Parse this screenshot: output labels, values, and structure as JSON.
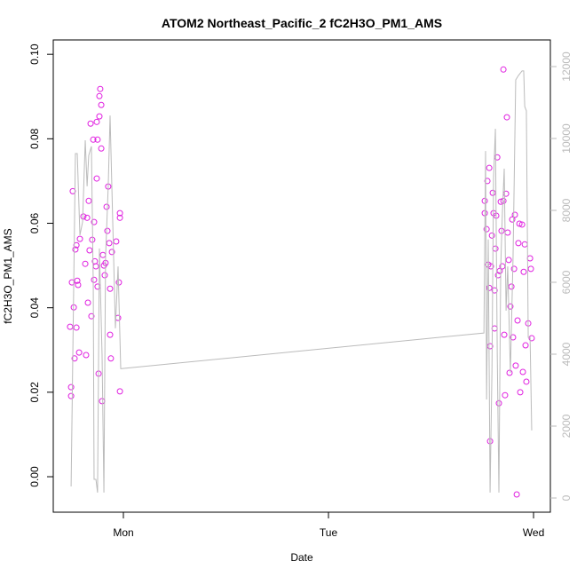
{
  "chart_data": {
    "type": "scatter",
    "title": "ATOM2 Northeast_Pacific_2 fC2H3O_PM1_AMS",
    "x_label": "Date",
    "y_label": "fC2H3O_PM1_AMS",
    "xlim": [
      0.658,
      3.082
    ],
    "xticks": [
      {
        "value": 1,
        "label": "Mon"
      },
      {
        "value": 2,
        "label": "Tue"
      },
      {
        "value": 3,
        "label": "Wed"
      }
    ],
    "ylim": [
      -0.0084,
      0.1034
    ],
    "yticks": [
      {
        "value": 0,
        "label": "0.00"
      },
      {
        "value": 0.02,
        "label": "0.02"
      },
      {
        "value": 0.04,
        "label": "0.04"
      },
      {
        "value": 0.06,
        "label": "0.06"
      },
      {
        "value": 0.08,
        "label": "0.08"
      },
      {
        "value": 0.1,
        "label": "0.10"
      }
    ],
    "y2lim": [
      -395,
      12741
    ],
    "y2ticks": [
      0,
      2000,
      4000,
      6000,
      8000,
      10000,
      12000
    ],
    "series": [
      {
        "type": "scatter",
        "color": "#e020e0",
        "x": [
          0.74,
          0.745,
          0.745,
          0.749,
          0.753,
          0.758,
          0.762,
          0.766,
          0.771,
          0.771,
          0.775,
          0.779,
          0.784,
          0.788,
          0.805,
          0.814,
          0.818,
          0.823,
          0.827,
          0.831,
          0.835,
          0.84,
          0.844,
          0.848,
          0.853,
          0.857,
          0.857,
          0.861,
          0.866,
          0.87,
          0.87,
          0.874,
          0.874,
          0.879,
          0.883,
          0.883,
          0.887,
          0.892,
          0.892,
          0.896,
          0.9,
          0.905,
          0.909,
          0.913,
          0.918,
          0.922,
          0.926,
          0.931,
          0.935,
          0.935,
          0.939,
          0.944,
          0.965,
          0.974,
          0.978,
          0.983,
          0.983,
          0.983,
          2.762,
          2.762,
          2.771,
          2.775,
          2.779,
          2.784,
          2.784,
          2.788,
          2.788,
          2.792,
          2.797,
          2.801,
          2.805,
          2.81,
          2.81,
          2.814,
          2.818,
          2.823,
          2.827,
          2.831,
          2.835,
          2.84,
          2.844,
          2.848,
          2.853,
          2.853,
          2.857,
          2.861,
          2.866,
          2.87,
          2.874,
          2.879,
          2.883,
          2.887,
          2.892,
          2.896,
          2.9,
          2.905,
          2.909,
          2.913,
          2.918,
          2.922,
          2.926,
          2.931,
          2.935,
          2.944,
          2.948,
          2.952,
          2.957,
          2.961,
          2.965,
          2.974,
          2.983,
          2.987,
          2.991
        ],
        "values": [
          0.0355,
          0.0212,
          0.0191,
          0.046,
          0.0676,
          0.0401,
          0.028,
          0.0538,
          0.0548,
          0.0353,
          0.0464,
          0.0454,
          0.0294,
          0.0563,
          0.0616,
          0.0504,
          0.0288,
          0.0613,
          0.0412,
          0.0653,
          0.0536,
          0.0836,
          0.038,
          0.0561,
          0.0798,
          0.0466,
          0.0603,
          0.051,
          0.0498,
          0.084,
          0.0706,
          0.0798,
          0.045,
          0.0244,
          0.0901,
          0.0853,
          0.0918,
          0.088,
          0.0777,
          0.0179,
          0.0525,
          0.05,
          0.0477,
          0.0506,
          0.0639,
          0.0582,
          0.0687,
          0.0553,
          0.0445,
          0.0336,
          0.028,
          0.0532,
          0.0557,
          0.0376,
          0.046,
          0.0624,
          0.0613,
          0.0202,
          0.0653,
          0.0624,
          0.0586,
          0.07,
          0.0502,
          0.0731,
          0.0447,
          0.0309,
          0.0084,
          0.0498,
          0.0571,
          0.0672,
          0.0624,
          0.0441,
          0.0351,
          0.054,
          0.0618,
          0.0756,
          0.0477,
          0.0174,
          0.0487,
          0.0651,
          0.0582,
          0.0498,
          0.0653,
          0.0964,
          0.0336,
          0.0193,
          0.067,
          0.0851,
          0.0578,
          0.0513,
          0.0246,
          0.0403,
          0.045,
          0.0609,
          0.033,
          0.0492,
          0.062,
          0.0263,
          -0.0042,
          0.037,
          0.0553,
          0.0599,
          0.02,
          0.0597,
          0.0248,
          0.0485,
          0.055,
          0.0311,
          0.0225,
          0.0363,
          0.0517,
          0.0492,
          0.0328
        ]
      },
      {
        "type": "line",
        "axis": "y2",
        "color": "#bbbbbb",
        "x": [
          0.745,
          0.766,
          0.775,
          0.788,
          0.801,
          0.814,
          0.823,
          0.831,
          0.844,
          0.853,
          0.857,
          0.866,
          0.874,
          0.883,
          0.896,
          0.905,
          0.913,
          0.926,
          0.935,
          0.948,
          0.961,
          0.974,
          0.987,
          0.991,
          2.758,
          2.766,
          2.771,
          2.779,
          2.788,
          2.797,
          2.805,
          2.814,
          2.823,
          2.831,
          2.84,
          2.848,
          2.857,
          2.866,
          2.874,
          2.887,
          2.9,
          2.913,
          2.926,
          2.944,
          2.952,
          2.957,
          2.965,
          2.974,
          2.983,
          2.991
        ],
        "values": [
          321,
          9580,
          9580,
          7310,
          7680,
          9950,
          8670,
          9530,
          9780,
          5950,
          520,
          520,
          150,
          6940,
          3980,
          150,
          6690,
          8670,
          10640,
          7680,
          4720,
          6440,
          3600,
          3600,
          4590,
          9650,
          2740,
          7190,
          150,
          3480,
          8910,
          10270,
          3980,
          150,
          6440,
          7930,
          9160,
          5210,
          6440,
          3480,
          6690,
          11630,
          11750,
          11880,
          11880,
          10890,
          10770,
          4470,
          4470,
          1880
        ]
      }
    ]
  }
}
